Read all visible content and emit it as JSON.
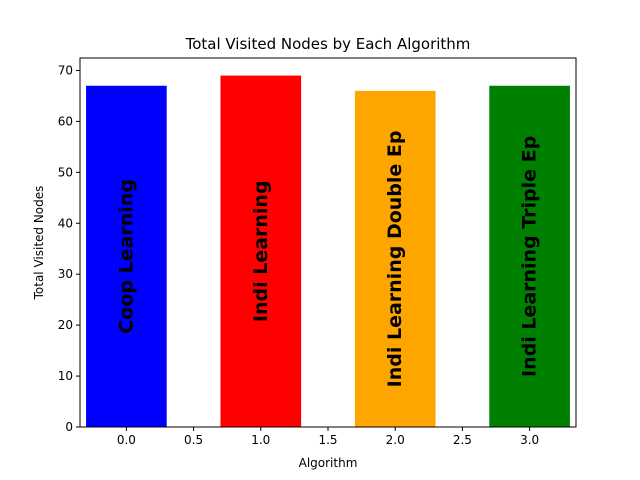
{
  "chart_data": {
    "type": "bar",
    "title": "Total Visited Nodes by Each Algorithm",
    "xlabel": "Algorithm",
    "ylabel": "Total Visited Nodes",
    "x": [
      0,
      1,
      2,
      3
    ],
    "values": [
      67,
      69,
      66,
      67
    ],
    "bar_labels": [
      "Coop Learning",
      "Indi Learning",
      "Indi Learning Double Ep",
      "Indi Learning Triple Ep"
    ],
    "bar_colors": [
      "#0000ff",
      "#ff0000",
      "#ffa500",
      "#008000"
    ],
    "bar_width": 0.6,
    "xlim": [
      -0.345,
      3.345
    ],
    "ylim": [
      0,
      72.45
    ],
    "xticks": [
      0.0,
      0.5,
      1.0,
      1.5,
      2.0,
      2.5,
      3.0
    ],
    "xtick_labels": [
      "0.0",
      "0.5",
      "1.0",
      "1.5",
      "2.0",
      "2.5",
      "3.0"
    ],
    "yticks": [
      0,
      10,
      20,
      30,
      40,
      50,
      60,
      70
    ],
    "ytick_labels": [
      "0",
      "10",
      "20",
      "30",
      "40",
      "50",
      "60",
      "70"
    ],
    "grid": false,
    "legend": "none"
  }
}
